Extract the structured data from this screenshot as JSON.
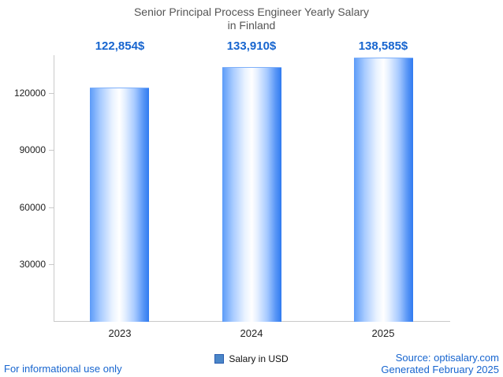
{
  "chart_data": {
    "type": "bar",
    "title": "Senior Principal Process Engineer Yearly Salary in Finland",
    "title_lines": [
      "Senior Principal Process Engineer Yearly Salary",
      "in Finland"
    ],
    "categories": [
      "2023",
      "2024",
      "2025"
    ],
    "series": [
      {
        "name": "Salary in USD",
        "values": [
          122854,
          133910,
          138585
        ]
      }
    ],
    "value_labels": [
      "122,854$",
      "133,910$",
      "138,585$"
    ],
    "xlabel": "",
    "ylabel": "",
    "ylim": [
      0,
      140000
    ],
    "yticks": [
      30000,
      60000,
      90000,
      120000
    ],
    "grid": false,
    "legend_position": "bottom"
  },
  "legend": {
    "label": "Salary in USD"
  },
  "footer": {
    "left": "For informational use only",
    "source": "Source: optisalary.com",
    "generated": "Generated February 2025"
  },
  "colors": {
    "accent_text": "#1765cf",
    "title_text": "#555555",
    "axis": "#c9c9c9",
    "bar_edge_left": "#5b9bf8",
    "bar_center": "#ffffff",
    "bar_edge_right": "#2f7af0",
    "legend_swatch": "#4a86c8"
  }
}
